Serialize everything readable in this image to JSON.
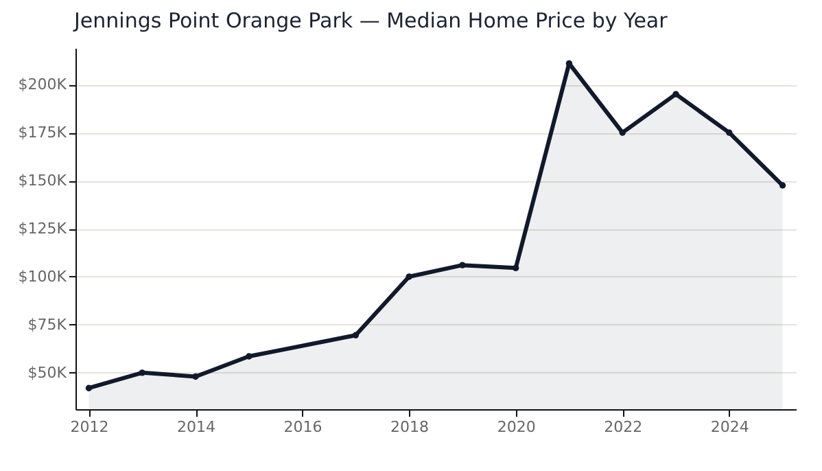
{
  "chart_data": {
    "type": "area",
    "title": "Jennings Point Orange Park — Median Home Price by Year",
    "x": [
      2012,
      2013,
      2014,
      2015,
      2017,
      2018,
      2019,
      2020,
      2021,
      2022,
      2023,
      2024,
      2025
    ],
    "series": [
      {
        "color": "#111a2c",
        "values": [
          42000,
          50000,
          48000,
          58500,
          69500,
          100000,
          106000,
          104500,
          211000,
          175000,
          195000,
          175000,
          147500
        ]
      }
    ],
    "xlim": [
      2011.75,
      2025.25
    ],
    "xticks": [
      2012,
      2014,
      2016,
      2018,
      2020,
      2022,
      2024
    ],
    "ylim": [
      31000,
      219000
    ],
    "yticks": [
      {
        "value": 50000,
        "label": "$50K"
      },
      {
        "value": 75000,
        "label": "$75K"
      },
      {
        "value": 100000,
        "label": "$100K"
      },
      {
        "value": 125000,
        "label": "$125K"
      },
      {
        "value": 150000,
        "label": "$150K"
      },
      {
        "value": 175000,
        "label": "$175K"
      },
      {
        "value": 200000,
        "label": "$200K"
      }
    ],
    "grid": "y",
    "marker": "circle",
    "line_style": "solid"
  }
}
